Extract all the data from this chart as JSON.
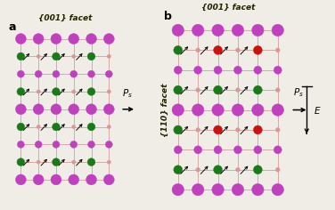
{
  "bg_color": "#f0ede6",
  "purple_color": "#c040c0",
  "green_color": "#1a7a1a",
  "pink_color": "#d89898",
  "red_color": "#cc1111",
  "facet_001": "{001} facet",
  "facet_110": "{110} facet",
  "bond_color": "#c89090"
}
